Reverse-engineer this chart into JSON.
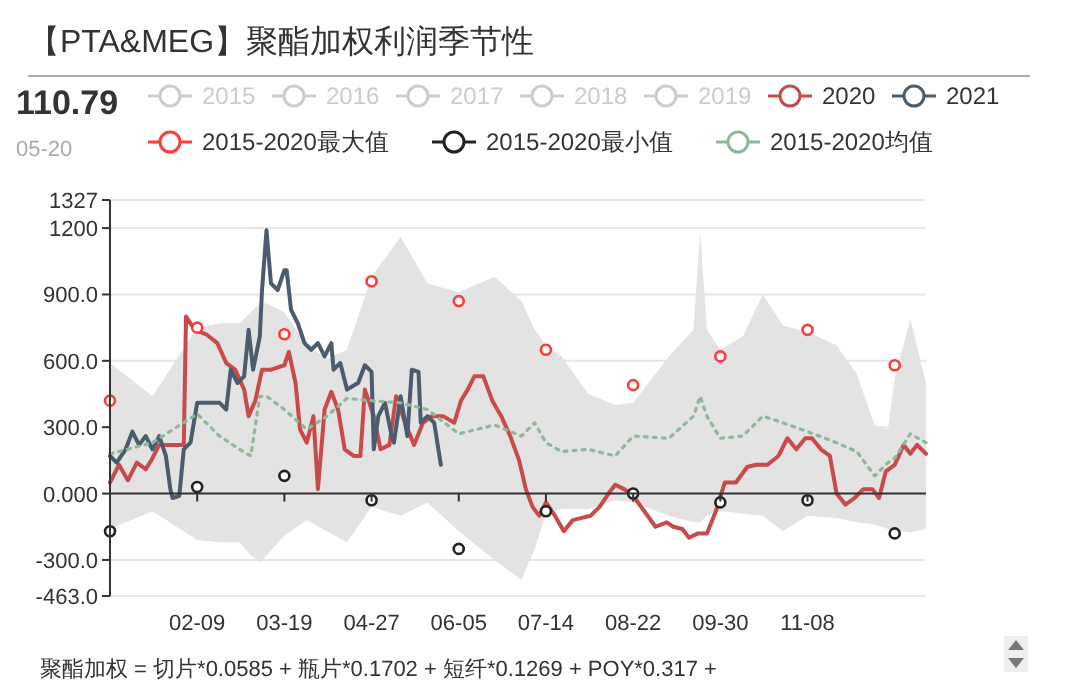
{
  "chart_data": {
    "type": "line",
    "title": "【PTA&MEG】聚酯加权利润季节性",
    "annotations": [
      "110.79",
      "05-20",
      "聚酯加权 = 切片*0.0585 + 瓶片*0.1702 + 短纤*0.1269 + POY*0.317 +"
    ],
    "xlim": [
      "--01-01",
      "--12-31"
    ],
    "xticks": [
      {
        "value": "--02-09",
        "label": "02-09"
      },
      {
        "value": "--03-19",
        "label": "03-19"
      },
      {
        "value": "--04-27",
        "label": "04-27"
      },
      {
        "value": "--06-05",
        "label": "06-05"
      },
      {
        "value": "--07-14",
        "label": "07-14"
      },
      {
        "value": "--08-22",
        "label": "08-22"
      },
      {
        "value": "--09-30",
        "label": "09-30"
      },
      {
        "value": "--11-08",
        "label": "11-08"
      }
    ],
    "ylim": [
      -463,
      1327
    ],
    "yticks": [
      {
        "value": -463,
        "label": "-463.0"
      },
      {
        "value": -300,
        "label": "-300.0"
      },
      {
        "value": 0,
        "label": "0.000"
      },
      {
        "value": 300,
        "label": "300.0"
      },
      {
        "value": 600,
        "label": "600.0"
      },
      {
        "value": 900,
        "label": "900.0"
      },
      1200,
      1327
    ],
    "grid": "y",
    "legend": "top",
    "series": [
      {
        "name": "2015",
        "type": "line",
        "color": "#cccccc"
      },
      {
        "name": "2016",
        "type": "line",
        "color": "#cccccc"
      },
      {
        "name": "2017",
        "type": "line",
        "color": "#cccccc"
      },
      {
        "name": "2018",
        "type": "line",
        "color": "#cccccc"
      },
      {
        "name": "2019",
        "type": "line",
        "color": "#cccccc"
      },
      {
        "name": "2020",
        "type": "line",
        "color": "#c94a4a",
        "x": [
          "--01-01",
          "--01-05",
          "--01-09",
          "--01-13",
          "--01-17",
          "--01-20",
          "--01-23",
          "--01-29",
          "--02-03",
          "--02-04",
          "--02-08",
          "--02-13",
          "--02-18",
          "--02-22",
          "--02-26",
          "--03-01",
          "--03-03",
          "--03-06",
          "--03-09",
          "--03-13",
          "--03-19",
          "--03-21",
          "--03-24",
          "--03-26",
          "--03-29",
          "--04-01",
          "--04-03",
          "--04-06",
          "--04-09",
          "--04-12",
          "--04-15",
          "--04-19",
          "--04-22",
          "--04-24",
          "--04-28",
          "--05-01",
          "--05-05",
          "--05-08",
          "--05-12",
          "--05-16",
          "--05-20",
          "--05-24",
          "--05-29",
          "--06-03",
          "--06-06",
          "--06-09",
          "--06-12",
          "--06-16",
          "--06-20",
          "--06-24",
          "--06-28",
          "--07-02",
          "--07-05",
          "--07-08",
          "--07-11",
          "--07-14",
          "--07-18",
          "--07-22",
          "--07-26",
          "--07-30",
          "--08-03",
          "--08-07",
          "--08-11",
          "--08-14",
          "--08-18",
          "--08-22",
          "--08-27",
          "--09-01",
          "--09-06",
          "--09-09",
          "--09-13",
          "--09-16",
          "--09-20",
          "--09-24",
          "--09-28",
          "--10-02",
          "--10-07",
          "--10-12",
          "--10-16",
          "--10-21",
          "--10-26",
          "--10-30",
          "--11-03",
          "--11-07",
          "--11-10",
          "--11-14",
          "--11-18",
          "--11-21",
          "--11-25",
          "--11-29",
          "--12-03",
          "--12-07",
          "--12-10",
          "--12-13",
          "--12-17",
          "--12-21",
          "--12-24",
          "--12-27",
          "--12-31"
        ],
        "values": [
          50,
          130,
          60,
          140,
          110,
          160,
          220,
          220,
          220,
          800,
          740,
          720,
          680,
          590,
          560,
          470,
          350,
          420,
          560,
          560,
          580,
          640,
          500,
          290,
          230,
          350,
          20,
          380,
          460,
          380,
          200,
          170,
          170,
          470,
          350,
          200,
          220,
          440,
          320,
          220,
          320,
          350,
          350,
          320,
          420,
          470,
          530,
          530,
          420,
          350,
          260,
          150,
          20,
          -60,
          -100,
          -40,
          -100,
          -170,
          -120,
          -110,
          -100,
          -60,
          0,
          40,
          20,
          -10,
          -80,
          -150,
          -130,
          -150,
          -160,
          -200,
          -180,
          -180,
          -80,
          50,
          50,
          120,
          130,
          130,
          170,
          250,
          200,
          250,
          250,
          200,
          170,
          0,
          -50,
          -20,
          20,
          20,
          -20,
          100,
          130,
          220,
          180,
          220,
          180
        ]
      },
      {
        "name": "2021",
        "type": "line",
        "color": "#4a5c6e",
        "x": [
          "--01-01",
          "--01-04",
          "--01-08",
          "--01-11",
          "--01-14",
          "--01-17",
          "--01-20",
          "--01-23",
          "--01-26",
          "--01-28",
          "--01-29",
          "--02-01",
          "--02-03",
          "--02-06",
          "--02-09",
          "--02-13",
          "--02-19",
          "--02-22",
          "--02-24",
          "--02-27",
          "--03-01",
          "--03-03",
          "--03-05",
          "--03-08",
          "--03-09",
          "--03-11",
          "--03-13",
          "--03-16",
          "--03-19",
          "--03-20",
          "--03-22",
          "--03-25",
          "--03-28",
          "--03-31",
          "--04-03",
          "--04-06",
          "--04-09",
          "--04-10",
          "--04-13",
          "--04-16",
          "--04-21",
          "--04-24",
          "--04-27",
          "--04-28",
          "--04-30",
          "--05-03",
          "--05-06",
          "--05-07",
          "--05-10",
          "--05-13",
          "--05-15",
          "--05-18",
          "--05-19",
          "--05-22",
          "--05-25",
          "--05-28"
        ],
        "values": [
          170,
          140,
          200,
          280,
          220,
          260,
          200,
          260,
          170,
          20,
          -20,
          -10,
          200,
          230,
          410,
          410,
          410,
          380,
          560,
          500,
          530,
          740,
          560,
          710,
          920,
          1190,
          950,
          920,
          1010,
          1010,
          830,
          770,
          680,
          650,
          680,
          620,
          680,
          560,
          590,
          470,
          500,
          580,
          550,
          200,
          350,
          410,
          260,
          230,
          440,
          260,
          560,
          550,
          320,
          350,
          320,
          130
        ]
      },
      {
        "name": "2015-2020最大值",
        "type": "scatter",
        "marker": "circle",
        "color": "#ff3b3b",
        "x": [
          "--01-01",
          "--02-09",
          "--03-19",
          "--04-27",
          "--06-05",
          "--07-14",
          "--08-22",
          "--09-30",
          "--11-08",
          "--12-17"
        ],
        "values": [
          420,
          750,
          720,
          960,
          870,
          650,
          490,
          620,
          740,
          580
        ]
      },
      {
        "name": "2015-2020最小值",
        "type": "scatter",
        "marker": "circle",
        "color": "#222222",
        "x": [
          "--01-01",
          "--02-09",
          "--03-19",
          "--04-27",
          "--06-05",
          "--07-14",
          "--08-22",
          "--09-30",
          "--11-08",
          "--12-17"
        ],
        "values": [
          -170,
          30,
          80,
          -30,
          -250,
          -80,
          0,
          -40,
          -30,
          -180
        ]
      },
      {
        "name": "2015-2020均值",
        "type": "line",
        "line_style": "dotted",
        "color": "#8fb89a",
        "x": [
          "--01-01",
          "--01-20",
          "--02-09",
          "--02-19",
          "--02-28",
          "--03-04",
          "--03-08",
          "--03-11",
          "--03-19",
          "--03-29",
          "--04-07",
          "--04-16",
          "--04-27",
          "--05-10",
          "--05-22",
          "--06-05",
          "--06-21",
          "--07-03",
          "--07-09",
          "--07-14",
          "--07-21",
          "--08-02",
          "--08-14",
          "--08-22",
          "--09-07",
          "--09-18",
          "--09-21",
          "--09-24",
          "--09-30",
          "--10-10",
          "--10-19",
          "--10-28",
          "--11-08",
          "--11-21",
          "--11-30",
          "--12-08",
          "--12-14",
          "--12-17",
          "--12-24",
          "--12-31"
        ],
        "values": [
          180,
          230,
          360,
          260,
          200,
          170,
          440,
          440,
          380,
          290,
          350,
          430,
          420,
          410,
          380,
          270,
          310,
          260,
          320,
          230,
          190,
          200,
          170,
          260,
          250,
          350,
          440,
          350,
          250,
          260,
          350,
          320,
          280,
          230,
          190,
          80,
          140,
          160,
          270,
          230
        ],
        "upper": [
          590,
          440,
          750,
          770,
          770,
          820,
          860,
          860,
          820,
          670,
          610,
          650,
          980,
          1160,
          950,
          910,
          980,
          870,
          740,
          670,
          620,
          450,
          400,
          410,
          620,
          740,
          1180,
          740,
          650,
          710,
          900,
          760,
          730,
          670,
          540,
          310,
          290,
          520,
          790,
          500
        ],
        "lower": [
          -160,
          -80,
          -210,
          -220,
          -220,
          -280,
          -310,
          -280,
          -190,
          -120,
          -170,
          -220,
          -60,
          -100,
          -40,
          -170,
          -300,
          -390,
          -250,
          -90,
          -70,
          -70,
          -30,
          -40,
          -100,
          -130,
          -130,
          -100,
          -80,
          -90,
          -100,
          -170,
          -100,
          -110,
          -130,
          -140,
          -160,
          -165,
          -175,
          -160
        ]
      }
    ]
  }
}
